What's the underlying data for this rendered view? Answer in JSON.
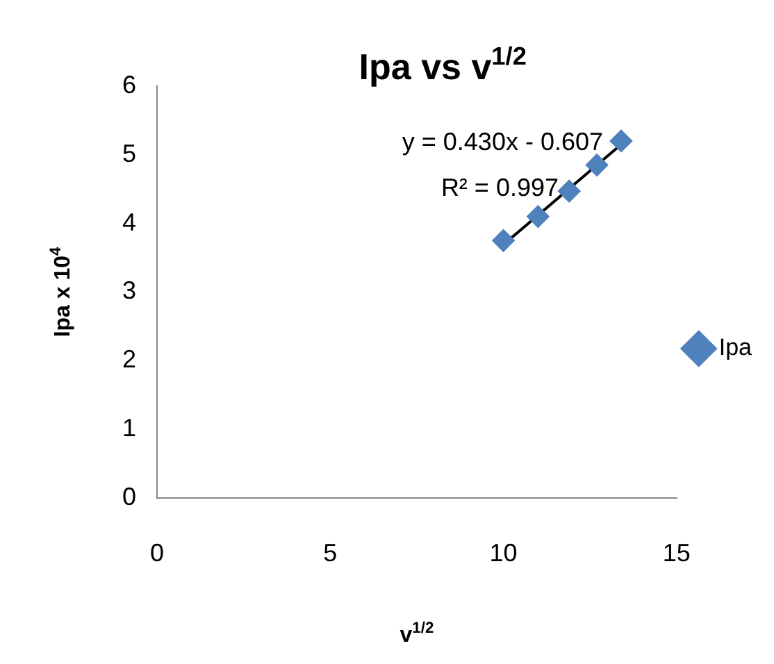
{
  "chart_data": {
    "type": "scatter",
    "title": "Ipa vs v$^{1/2}$",
    "xlabel": "v$^{1/2}$",
    "ylabel": "Ipa x 10$^{4}$",
    "series": [
      {
        "name": "Ipa",
        "type": "scatter",
        "color": "#4f81bd",
        "marker": "diamond",
        "x": [
          10,
          11,
          11.9,
          12.7,
          13.4
        ],
        "values": [
          3.75,
          4.1,
          4.47,
          4.85,
          5.2
        ]
      },
      {
        "type": "line",
        "color": "#000000",
        "marker": "none",
        "line_style": "solid",
        "x": [
          10,
          13.4
        ],
        "values": [
          3.69,
          5.15
        ]
      }
    ],
    "annotations": [
      "y = 0.430x - 0.607",
      "R² = 0.997"
    ],
    "xlim": [
      0,
      15
    ],
    "xticks": [
      0,
      5,
      10,
      15
    ],
    "ylim": [
      0,
      6
    ],
    "yticks": [
      0,
      1,
      2,
      3,
      4,
      5,
      6
    ],
    "grid": false,
    "legend": "right"
  }
}
